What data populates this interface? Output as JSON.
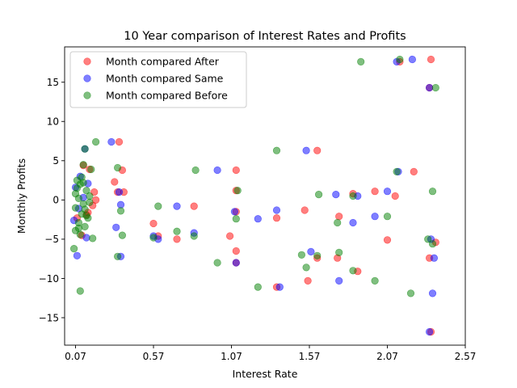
{
  "chart_data": {
    "type": "scatter",
    "title": "10 Year comparison of Interest Rates and Profits",
    "xlabel": "Interest Rate",
    "ylabel": "Monthly Profits",
    "xlim": [
      0.0,
      2.57
    ],
    "ylim": [
      -18.5,
      19.5
    ],
    "xticks": [
      0.07,
      0.57,
      1.07,
      1.57,
      2.07,
      2.57
    ],
    "xtick_labels": [
      "0.07",
      "0.57",
      "1.07",
      "1.57",
      "2.07",
      "2.57"
    ],
    "yticks": [
      -15,
      -10,
      -5,
      0,
      5,
      10,
      15
    ],
    "ytick_labels": [
      "−15",
      "−10",
      "−5",
      "0",
      "5",
      "10",
      "15"
    ],
    "grid": false,
    "legend_position": "top-left",
    "series": [
      {
        "name": "Month compared After",
        "color": "#ff0000",
        "points": [
          [
            2.35,
            17.9
          ],
          [
            2.34,
            14.3
          ],
          [
            1.1,
            3.8
          ],
          [
            1.62,
            6.3
          ],
          [
            0.35,
            7.4
          ],
          [
            0.37,
            3.8
          ],
          [
            0.34,
            1.0
          ],
          [
            0.38,
            1.0
          ],
          [
            0.32,
            2.3
          ],
          [
            0.57,
            -3.0
          ],
          [
            0.6,
            -4.6
          ],
          [
            0.72,
            -5.0
          ],
          [
            0.83,
            -0.8
          ],
          [
            1.06,
            -4.6
          ],
          [
            1.1,
            -1.5
          ],
          [
            1.1,
            1.2
          ],
          [
            1.1,
            -6.5
          ],
          [
            1.1,
            -8.0
          ],
          [
            1.36,
            -11.1
          ],
          [
            1.36,
            -2.3
          ],
          [
            1.54,
            -1.3
          ],
          [
            1.56,
            -10.3
          ],
          [
            1.62,
            -7.4
          ],
          [
            1.75,
            -7.4
          ],
          [
            1.76,
            -2.1
          ],
          [
            1.85,
            0.8
          ],
          [
            1.88,
            -9.1
          ],
          [
            1.99,
            1.1
          ],
          [
            2.07,
            -5.1
          ],
          [
            2.12,
            0.5
          ],
          [
            2.15,
            17.6
          ],
          [
            2.24,
            3.6
          ],
          [
            2.34,
            -7.4
          ],
          [
            2.35,
            -16.8
          ],
          [
            2.38,
            -5.4
          ],
          [
            0.19,
            1.0
          ],
          [
            0.12,
            4.4
          ],
          [
            0.16,
            3.9
          ],
          [
            0.2,
            0.0
          ],
          [
            0.14,
            -1.9
          ],
          [
            0.11,
            -4.5
          ],
          [
            0.08,
            -2.3
          ],
          [
            0.15,
            -1.6
          ],
          [
            0.18,
            -0.7
          ]
        ]
      },
      {
        "name": "Month compared Same",
        "color": "#0000ff",
        "points": [
          [
            2.23,
            17.9
          ],
          [
            2.34,
            14.3
          ],
          [
            0.98,
            3.8
          ],
          [
            1.55,
            6.3
          ],
          [
            0.3,
            7.4
          ],
          [
            0.35,
            1.0
          ],
          [
            0.36,
            -0.6
          ],
          [
            0.33,
            -3.5
          ],
          [
            0.36,
            -7.2
          ],
          [
            0.57,
            -4.6
          ],
          [
            0.6,
            -5.0
          ],
          [
            0.72,
            -0.8
          ],
          [
            0.83,
            -4.2
          ],
          [
            1.09,
            -1.5
          ],
          [
            1.1,
            -8.0
          ],
          [
            1.24,
            -2.4
          ],
          [
            1.36,
            -1.3
          ],
          [
            1.38,
            -11.1
          ],
          [
            1.58,
            -6.6
          ],
          [
            1.74,
            0.7
          ],
          [
            1.76,
            -10.3
          ],
          [
            1.85,
            -2.9
          ],
          [
            1.88,
            0.5
          ],
          [
            1.99,
            -2.1
          ],
          [
            2.07,
            1.1
          ],
          [
            2.13,
            17.6
          ],
          [
            2.14,
            3.6
          ],
          [
            2.35,
            -5.0
          ],
          [
            2.34,
            -16.8
          ],
          [
            2.37,
            -7.4
          ],
          [
            2.36,
            -11.9
          ],
          [
            0.07,
            1.6
          ],
          [
            0.1,
            3.0
          ],
          [
            0.12,
            0.3
          ],
          [
            0.09,
            -1.1
          ],
          [
            0.15,
            2.1
          ],
          [
            0.08,
            -7.1
          ],
          [
            0.13,
            6.5
          ],
          [
            0.14,
            -4.8
          ],
          [
            0.06,
            -2.6
          ]
        ]
      },
      {
        "name": "Month compared Before",
        "color": "#008000",
        "points": [
          [
            1.9,
            17.6
          ],
          [
            2.15,
            17.9
          ],
          [
            2.38,
            14.3
          ],
          [
            1.36,
            6.3
          ],
          [
            0.84,
            3.8
          ],
          [
            0.34,
            4.1
          ],
          [
            0.36,
            -1.4
          ],
          [
            0.37,
            -4.5
          ],
          [
            0.34,
            -7.2
          ],
          [
            0.57,
            -4.8
          ],
          [
            0.6,
            -0.8
          ],
          [
            0.72,
            -4.0
          ],
          [
            0.83,
            -4.6
          ],
          [
            0.98,
            -8.0
          ],
          [
            1.1,
            -2.4
          ],
          [
            1.11,
            1.2
          ],
          [
            1.24,
            -11.1
          ],
          [
            1.52,
            -7.0
          ],
          [
            1.55,
            -8.6
          ],
          [
            1.63,
            0.7
          ],
          [
            1.62,
            -7.1
          ],
          [
            1.75,
            -2.9
          ],
          [
            1.76,
            -6.7
          ],
          [
            1.85,
            0.5
          ],
          [
            1.85,
            -9.0
          ],
          [
            1.99,
            -10.3
          ],
          [
            2.07,
            -2.1
          ],
          [
            2.13,
            3.6
          ],
          [
            2.22,
            -11.9
          ],
          [
            2.33,
            -5.0
          ],
          [
            2.36,
            1.1
          ],
          [
            2.36,
            -5.6
          ],
          [
            0.2,
            7.4
          ],
          [
            0.13,
            6.5
          ],
          [
            0.12,
            4.5
          ],
          [
            0.17,
            3.9
          ],
          [
            0.08,
            2.5
          ],
          [
            0.1,
            2.0
          ],
          [
            0.14,
            1.2
          ],
          [
            0.09,
            0.2
          ],
          [
            0.12,
            -0.5
          ],
          [
            0.07,
            -1.0
          ],
          [
            0.11,
            -1.8
          ],
          [
            0.15,
            -2.3
          ],
          [
            0.09,
            -2.9
          ],
          [
            0.13,
            -3.4
          ],
          [
            0.07,
            -3.9
          ],
          [
            0.1,
            -4.4
          ],
          [
            0.06,
            -6.2
          ],
          [
            0.18,
            -4.9
          ],
          [
            0.16,
            -0.3
          ],
          [
            0.08,
            1.5
          ],
          [
            0.11,
            2.9
          ],
          [
            0.13,
            -1.2
          ],
          [
            0.07,
            0.8
          ],
          [
            0.14,
            -2.0
          ],
          [
            0.09,
            -3.6
          ],
          [
            0.12,
            2.2
          ],
          [
            0.1,
            -11.6
          ],
          [
            0.16,
            0.5
          ]
        ]
      }
    ]
  }
}
